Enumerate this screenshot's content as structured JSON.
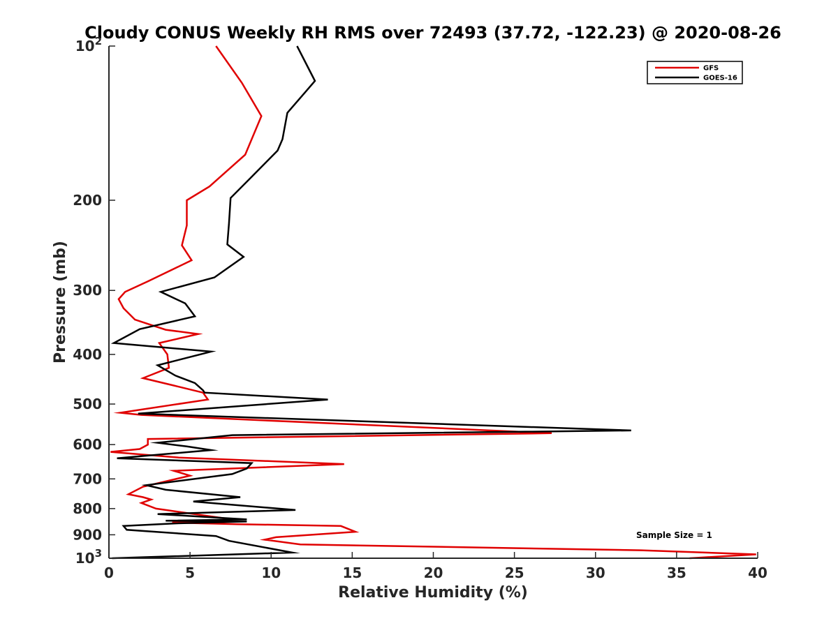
{
  "chart_data": {
    "type": "line",
    "title": "Cloudy CONUS Weekly RH RMS over 72493 (37.72, -122.23) @ 2020-08-26",
    "xlabel": "Relative Humidity (%)",
    "ylabel": "Pressure (mb)",
    "xlim": [
      0,
      40
    ],
    "ylim": [
      100,
      1000
    ],
    "y_scale": "log",
    "y_reversed": true,
    "x_ticks": [
      "0",
      "5",
      "10",
      "15",
      "20",
      "25",
      "30",
      "35",
      "40"
    ],
    "x_tick_values": [
      0,
      5,
      10,
      15,
      20,
      25,
      30,
      35,
      40
    ],
    "y_ticks": [
      {
        "value": 100,
        "base": "10",
        "exp": "2"
      },
      {
        "value": 200,
        "label": "200"
      },
      {
        "value": 300,
        "label": "300"
      },
      {
        "value": 400,
        "label": "400"
      },
      {
        "value": 500,
        "label": "500"
      },
      {
        "value": 600,
        "label": "600"
      },
      {
        "value": 700,
        "label": "700"
      },
      {
        "value": 800,
        "label": "800"
      },
      {
        "value": 900,
        "label": "900"
      },
      {
        "value": 1000,
        "base": "10",
        "exp": "3"
      }
    ],
    "legend_position": "top-right",
    "annotation": "Sample Size = 1",
    "series": [
      {
        "name": "GFS",
        "color": "#e00000",
        "points": [
          [
            6.6,
            100
          ],
          [
            8.2,
            118
          ],
          [
            9.4,
            137
          ],
          [
            8.4,
            163
          ],
          [
            6.2,
            188
          ],
          [
            4.8,
            200
          ],
          [
            4.8,
            224
          ],
          [
            4.5,
            245
          ],
          [
            5.1,
            262
          ],
          [
            2.4,
            288
          ],
          [
            1.0,
            302
          ],
          [
            0.6,
            312
          ],
          [
            0.9,
            325
          ],
          [
            1.6,
            342
          ],
          [
            3.5,
            358
          ],
          [
            5.5,
            365
          ],
          [
            3.1,
            380
          ],
          [
            3.6,
            400
          ],
          [
            3.7,
            425
          ],
          [
            2.1,
            445
          ],
          [
            4.0,
            460
          ],
          [
            5.8,
            475
          ],
          [
            6.1,
            490
          ],
          [
            0.7,
            520
          ],
          [
            2.0,
            525
          ],
          [
            27.3,
            570
          ],
          [
            2.4,
            585
          ],
          [
            2.4,
            600
          ],
          [
            1.9,
            612
          ],
          [
            0.1,
            620
          ],
          [
            4.3,
            636
          ],
          [
            14.5,
            655
          ],
          [
            4.0,
            675
          ],
          [
            5.0,
            690
          ],
          [
            2.1,
            725
          ],
          [
            1.2,
            750
          ],
          [
            2.1,
            760
          ],
          [
            2.6,
            768
          ],
          [
            2.0,
            780
          ],
          [
            2.9,
            800
          ],
          [
            7.6,
            840
          ],
          [
            3.9,
            852
          ],
          [
            7.9,
            858
          ],
          [
            14.3,
            865
          ],
          [
            15.2,
            888
          ],
          [
            10.3,
            910
          ],
          [
            9.6,
            920
          ],
          [
            11.8,
            940
          ],
          [
            32.8,
            965
          ],
          [
            39.9,
            983
          ],
          [
            35.8,
            1000
          ]
        ]
      },
      {
        "name": "GOES-16",
        "color": "#000000",
        "points": [
          [
            11.6,
            100
          ],
          [
            12.7,
            117
          ],
          [
            11.0,
            135
          ],
          [
            10.7,
            152
          ],
          [
            10.4,
            160
          ],
          [
            8.8,
            180
          ],
          [
            7.5,
            198
          ],
          [
            7.4,
            222
          ],
          [
            7.3,
            244
          ],
          [
            8.3,
            258
          ],
          [
            6.5,
            283
          ],
          [
            3.2,
            302
          ],
          [
            4.7,
            318
          ],
          [
            5.3,
            337
          ],
          [
            1.9,
            357
          ],
          [
            0.3,
            380
          ],
          [
            6.3,
            395
          ],
          [
            3.0,
            420
          ],
          [
            4.1,
            440
          ],
          [
            5.3,
            455
          ],
          [
            5.8,
            470
          ],
          [
            5.9,
            475
          ],
          [
            13.5,
            490
          ],
          [
            1.8,
            522
          ],
          [
            32.2,
            563
          ],
          [
            7.6,
            575
          ],
          [
            3.0,
            595
          ],
          [
            4.8,
            605
          ],
          [
            6.3,
            615
          ],
          [
            0.5,
            638
          ],
          [
            8.8,
            652
          ],
          [
            8.5,
            668
          ],
          [
            7.6,
            685
          ],
          [
            2.3,
            720
          ],
          [
            3.5,
            735
          ],
          [
            8.1,
            760
          ],
          [
            5.2,
            775
          ],
          [
            11.5,
            805
          ],
          [
            3.0,
            820
          ],
          [
            8.5,
            840
          ],
          [
            3.5,
            845
          ],
          [
            8.5,
            848
          ],
          [
            4.1,
            855
          ],
          [
            0.9,
            865
          ],
          [
            1.1,
            880
          ],
          [
            6.6,
            905
          ],
          [
            7.4,
            925
          ],
          [
            11.3,
            975
          ],
          [
            0.2,
            1000
          ]
        ]
      }
    ]
  }
}
